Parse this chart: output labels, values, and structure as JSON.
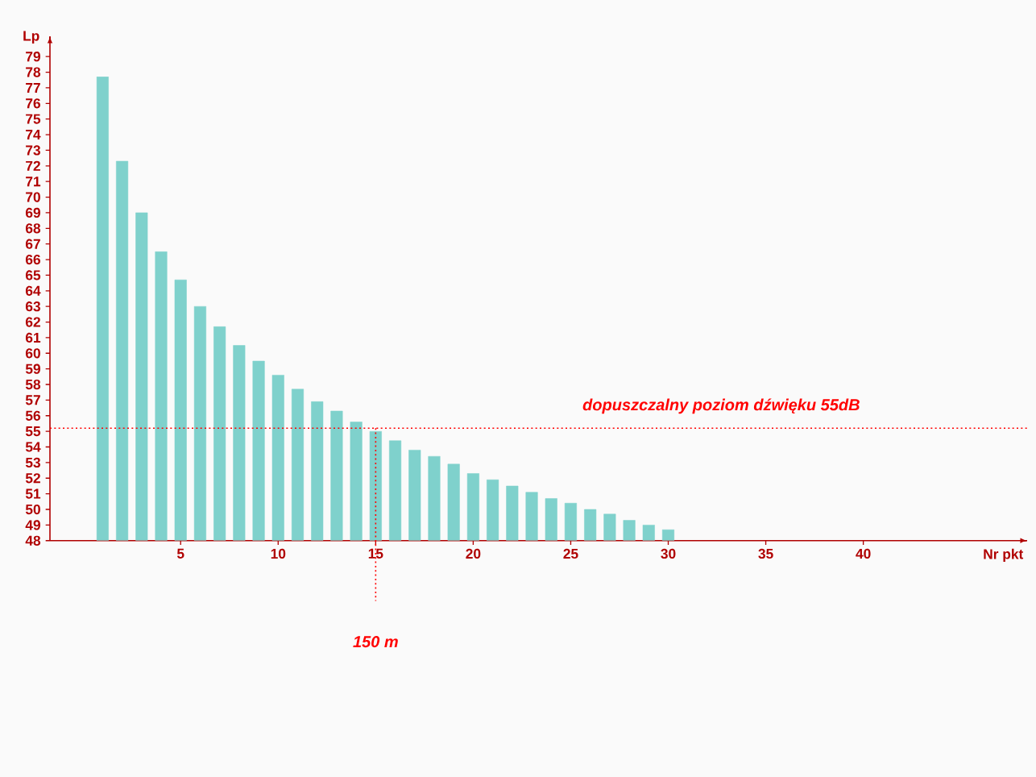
{
  "chart_data": {
    "type": "bar",
    "xlabel": "Nr pkt",
    "ylabel": "Lp",
    "x": [
      1,
      2,
      3,
      4,
      5,
      6,
      7,
      8,
      9,
      10,
      11,
      12,
      13,
      14,
      15,
      16,
      17,
      18,
      19,
      20,
      21,
      22,
      23,
      24,
      25,
      26,
      27,
      28,
      29,
      30
    ],
    "values": [
      77.7,
      72.3,
      69.0,
      66.5,
      64.7,
      63.0,
      61.7,
      60.5,
      59.5,
      58.6,
      57.7,
      56.9,
      56.3,
      55.6,
      55.0,
      54.4,
      53.8,
      53.4,
      52.9,
      52.3,
      51.9,
      51.5,
      51.1,
      50.7,
      50.4,
      50.0,
      49.7,
      49.3,
      49.0,
      48.7
    ],
    "color": "#7fd1cc",
    "xlim": [
      -1.7,
      48.4
    ],
    "xticks": [
      5,
      10,
      15,
      20,
      25,
      30,
      35,
      40
    ],
    "ylim": [
      48,
      80.3
    ],
    "yticks": [
      48,
      49,
      50,
      51,
      52,
      53,
      54,
      55,
      56,
      57,
      58,
      59,
      60,
      61,
      62,
      63,
      64,
      65,
      66,
      67,
      68,
      69,
      70,
      71,
      72,
      73,
      74,
      75,
      76,
      77,
      78,
      79
    ],
    "ref_lines": [
      {
        "axis": "y",
        "value": 55.2,
        "label": "dopuszczalny poziom dźwięku 55dB",
        "color": "#ff0000",
        "line_style": "dotted"
      },
      {
        "axis": "x",
        "value": 15,
        "label": "150 m",
        "color": "#ff0000",
        "line_style": "dotted"
      }
    ],
    "grid": false
  }
}
